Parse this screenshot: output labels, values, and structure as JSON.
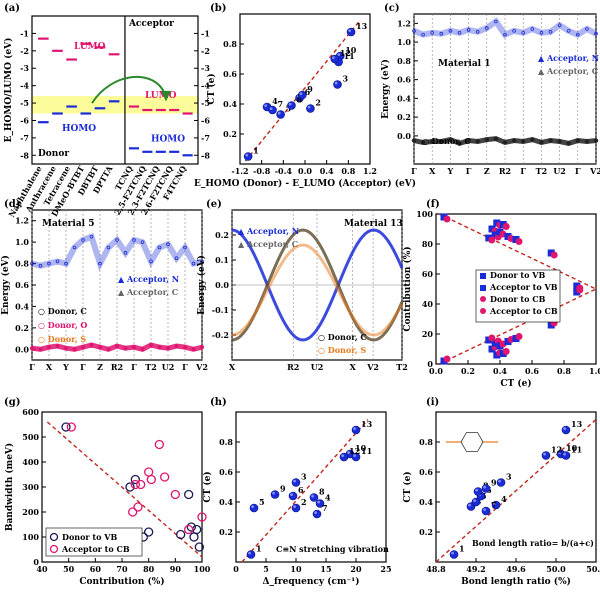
{
  "colors": {
    "blue": "#1a2bd8",
    "pink": "#e0156f",
    "orange": "#e8781a",
    "gray": "#8a8a8a",
    "red_dash": "#c0281e",
    "yellow": "#fdfc9b",
    "green": "#2a8a2a",
    "black": "#111111"
  },
  "chart_data": [
    {
      "panel": "(a)",
      "type": "scatter",
      "ylabel": "E_HOMO/LUMO (eV)",
      "ylim": [
        -8.5,
        0
      ],
      "annotations": [
        "LUMO",
        "HOMO",
        "Donor",
        "Acceptor",
        "LUMO",
        "HOMO"
      ],
      "donor_molecules": [
        "Naphthalene",
        "Anthracene",
        "Tetracene",
        "DMeO-BTBT",
        "DBTBT",
        "DPTTA"
      ],
      "acceptor_molecules": [
        "TCNQ",
        "2,5-F2TCNQ",
        "2,3-F2TCNQ",
        "2,6-F2TCNQ",
        "F4TCNQ"
      ],
      "donor_homo": [
        -6.1,
        -5.6,
        -5.2,
        -5.6,
        -5.3,
        -4.9
      ],
      "donor_lumo": [
        -1.3,
        -2.0,
        -2.5,
        -1.6,
        -1.8,
        -2.2
      ],
      "acceptor_lumo": [
        -5.2,
        -5.4,
        -5.4,
        -5.4,
        -5.6
      ],
      "acceptor_homo": [
        -7.6,
        -7.8,
        -7.8,
        -7.8,
        -8.0
      ],
      "yticks": [
        -8,
        -7,
        -6,
        -5,
        -4,
        -3,
        -2,
        -1
      ],
      "band": [
        -5.6,
        -4.6
      ]
    },
    {
      "panel": "(b)",
      "type": "scatter",
      "xlabel": "E_HOMO (Donor) - E_LUMO (Acceptor) (eV)",
      "ylabel": "CT (e)",
      "xlim": [
        -1.2,
        1.2
      ],
      "ylim": [
        0.0,
        1.0
      ],
      "xticks": [
        -1.2,
        -0.8,
        -0.4,
        0.0,
        0.4,
        0.8,
        1.2
      ],
      "yticks": [
        0.2,
        0.4,
        0.6,
        0.8
      ],
      "points": [
        {
          "label": "1",
          "x": -1.05,
          "y": 0.05
        },
        {
          "label": "2",
          "x": 0.1,
          "y": 0.37
        },
        {
          "label": "3",
          "x": 0.6,
          "y": 0.53
        },
        {
          "label": "4",
          "x": -0.7,
          "y": 0.38
        },
        {
          "label": "5",
          "x": -0.45,
          "y": 0.33
        },
        {
          "label": "6",
          "x": -0.1,
          "y": 0.44
        },
        {
          "label": "7",
          "x": -0.6,
          "y": 0.36
        },
        {
          "label": "8",
          "x": -0.25,
          "y": 0.39
        },
        {
          "label": "9",
          "x": -0.05,
          "y": 0.46
        },
        {
          "label": "10",
          "x": 0.65,
          "y": 0.72
        },
        {
          "label": "11",
          "x": 0.62,
          "y": 0.68
        },
        {
          "label": "12",
          "x": 0.55,
          "y": 0.7
        },
        {
          "label": "13",
          "x": 0.85,
          "y": 0.88
        }
      ],
      "fit": [
        [
          -1.1,
          0.02
        ],
        [
          1.0,
          0.95
        ]
      ]
    },
    {
      "panel": "(c)",
      "type": "line",
      "title": "Material 1",
      "ylabel": "Energy (eV)",
      "ylim": [
        -0.3,
        1.3
      ],
      "yticks": [
        0.0,
        0.2,
        0.4,
        0.6,
        0.8,
        1.0,
        1.2
      ],
      "kpoints": [
        "Γ",
        "X",
        "Y",
        "Γ",
        "Z",
        "R2",
        "Γ",
        "T2",
        "U2",
        "Γ",
        "V2"
      ],
      "legend": [
        "Acceptor, N",
        "Acceptor, C",
        "Donor, C"
      ],
      "acceptor_band": [
        1.12,
        1.08,
        1.1,
        1.09,
        1.12,
        1.1,
        1.13,
        1.11,
        1.15,
        1.22,
        1.08,
        1.12,
        1.1,
        1.14,
        1.1,
        1.11,
        1.18,
        1.12,
        1.08,
        1.14,
        1.09
      ],
      "donor_band": [
        -0.05,
        -0.07,
        -0.06,
        -0.06,
        -0.04,
        -0.08,
        -0.05,
        -0.06,
        -0.04,
        -0.03,
        -0.07,
        -0.05,
        -0.06,
        -0.04,
        -0.07,
        -0.05,
        -0.06,
        -0.08,
        -0.05,
        -0.06,
        -0.05
      ]
    },
    {
      "panel": "(d)",
      "type": "line",
      "title": "Material 5",
      "ylabel": "Energy (eV)",
      "ylim": [
        -0.1,
        1.3
      ],
      "yticks": [
        0.0,
        0.2,
        0.4,
        0.6,
        0.8,
        1.0,
        1.2
      ],
      "kpoints": [
        "Γ",
        "X",
        "Y",
        "Γ",
        "Z",
        "R2",
        "Γ",
        "T2",
        "U2",
        "Γ",
        "V2"
      ],
      "legend": [
        "Acceptor, N",
        "Acceptor, C",
        "Donor, C",
        "Donor, O",
        "Donor, S"
      ],
      "acceptor_band": [
        0.8,
        0.78,
        0.8,
        0.82,
        0.8,
        0.95,
        1.02,
        1.05,
        0.8,
        0.95,
        1.02,
        0.9,
        1.02,
        1.0,
        0.82,
        0.95,
        0.98,
        0.85,
        0.95,
        0.8,
        0.82
      ],
      "donor_band": [
        0.01,
        0.0,
        0.02,
        0.03,
        0.01,
        0.0,
        0.02,
        0.04,
        0.02,
        0.0,
        0.03,
        0.01,
        0.02,
        0.0,
        0.04,
        0.02,
        0.01,
        0.03,
        0.02,
        0.0,
        0.02
      ]
    },
    {
      "panel": "(e)",
      "type": "line",
      "title": "Material 13",
      "ylabel": "Energy (eV)",
      "ylim": [
        -0.3,
        0.3
      ],
      "yticks": [
        -0.2,
        -0.1,
        0.0,
        0.1,
        0.2
      ],
      "kpoints": [
        "X",
        "R2",
        "U2",
        "X",
        "V2",
        "T2"
      ],
      "legend": [
        "Acceptor, N",
        "Acceptor, C",
        "Donor, C",
        "Donor, S"
      ]
    },
    {
      "panel": "(f)",
      "type": "scatter",
      "xlabel": "CT (e)",
      "ylabel": "Contribution (%)",
      "xlim": [
        0.0,
        1.0
      ],
      "ylim": [
        0,
        100
      ],
      "xticks": [
        0.0,
        0.2,
        0.4,
        0.6,
        0.8,
        1.0
      ],
      "yticks": [
        0,
        20,
        40,
        60,
        80,
        100
      ],
      "legend": [
        "Donor to VB",
        "Acceptor to VB",
        "Donor to CB",
        "Acceptor to CB"
      ],
      "upper_points": [
        [
          0.05,
          98
        ],
        [
          0.35,
          90
        ],
        [
          0.38,
          94
        ],
        [
          0.42,
          93
        ],
        [
          0.37,
          86
        ],
        [
          0.33,
          84
        ],
        [
          0.4,
          88
        ],
        [
          0.45,
          85
        ],
        [
          0.5,
          83
        ],
        [
          0.72,
          74
        ],
        [
          0.88,
          52
        ]
      ],
      "lower_points": [
        [
          0.05,
          2
        ],
        [
          0.35,
          10
        ],
        [
          0.38,
          6
        ],
        [
          0.42,
          7
        ],
        [
          0.37,
          14
        ],
        [
          0.33,
          16
        ],
        [
          0.4,
          12
        ],
        [
          0.45,
          15
        ],
        [
          0.5,
          17
        ],
        [
          0.72,
          26
        ],
        [
          0.88,
          48
        ]
      ]
    },
    {
      "panel": "(g)",
      "type": "scatter",
      "xlabel": "Contribution (%)",
      "ylabel": "Bandwidth (meV)",
      "xlim": [
        40,
        100
      ],
      "ylim": [
        0,
        600
      ],
      "xticks": [
        40,
        50,
        60,
        70,
        80,
        90,
        100
      ],
      "yticks": [
        0,
        100,
        200,
        300,
        400,
        500,
        600
      ],
      "legend": [
        "Donor to VB",
        "Acceptor to CB"
      ],
      "donor_points": [
        [
          49,
          540
        ],
        [
          73,
          300
        ],
        [
          75,
          330
        ],
        [
          78,
          100
        ],
        [
          80,
          120
        ],
        [
          95,
          270
        ],
        [
          96,
          140
        ],
        [
          97,
          100
        ],
        [
          98,
          130
        ],
        [
          99,
          60
        ],
        [
          92,
          110
        ]
      ],
      "acceptor_points": [
        [
          51,
          540
        ],
        [
          74,
          200
        ],
        [
          75,
          310
        ],
        [
          76,
          220
        ],
        [
          77,
          310
        ],
        [
          80,
          360
        ],
        [
          81,
          330
        ],
        [
          84,
          470
        ],
        [
          86,
          340
        ],
        [
          90,
          270
        ],
        [
          95,
          130
        ],
        [
          100,
          180
        ]
      ]
    },
    {
      "panel": "(h)",
      "type": "scatter",
      "xlabel": "Δ_frequency (cm⁻¹)",
      "ylabel": "CT (e)",
      "xlim": [
        0,
        25
      ],
      "ylim": [
        0.0,
        1.0
      ],
      "xticks": [
        0,
        5,
        10,
        15,
        20,
        25
      ],
      "yticks": [
        0.2,
        0.4,
        0.6,
        0.8
      ],
      "annotation": "C≡N stretching vibration",
      "points": [
        {
          "label": "1",
          "x": 2.5,
          "y": 0.05
        },
        {
          "label": "2",
          "x": 10,
          "y": 0.36
        },
        {
          "label": "3",
          "x": 10,
          "y": 0.53
        },
        {
          "label": "4",
          "x": 14,
          "y": 0.39
        },
        {
          "label": "5",
          "x": 3,
          "y": 0.36
        },
        {
          "label": "6",
          "x": 9.5,
          "y": 0.44
        },
        {
          "label": "7",
          "x": 13.5,
          "y": 0.32
        },
        {
          "label": "8",
          "x": 13,
          "y": 0.43
        },
        {
          "label": "9",
          "x": 6.5,
          "y": 0.45
        },
        {
          "label": "10",
          "x": 19,
          "y": 0.72
        },
        {
          "label": "11",
          "x": 20,
          "y": 0.7
        },
        {
          "label": "12",
          "x": 18,
          "y": 0.7
        },
        {
          "label": "13",
          "x": 20,
          "y": 0.88
        }
      ],
      "fit": [
        [
          1,
          0.0
        ],
        [
          22,
          0.95
        ]
      ]
    },
    {
      "panel": "(i)",
      "type": "scatter",
      "xlabel": "Bond length ratio (%)",
      "ylabel": "CT (e)",
      "xlim": [
        48.8,
        50.4
      ],
      "ylim": [
        0.0,
        1.0
      ],
      "xticks": [
        48.8,
        49.2,
        49.6,
        50.0,
        50.4
      ],
      "yticks": [
        0.2,
        0.4,
        0.6,
        0.8
      ],
      "annotation": "Bond length ratio= b/(a+c)",
      "points": [
        {
          "label": "1",
          "x": 48.98,
          "y": 0.05
        },
        {
          "label": "2",
          "x": 49.15,
          "y": 0.37
        },
        {
          "label": "3",
          "x": 49.45,
          "y": 0.53
        },
        {
          "label": "4",
          "x": 49.4,
          "y": 0.38
        },
        {
          "label": "5",
          "x": 49.2,
          "y": 0.4
        },
        {
          "label": "6",
          "x": 49.25,
          "y": 0.44
        },
        {
          "label": "7",
          "x": 49.3,
          "y": 0.34
        },
        {
          "label": "8",
          "x": 49.22,
          "y": 0.47
        },
        {
          "label": "9",
          "x": 49.3,
          "y": 0.49
        },
        {
          "label": "10",
          "x": 50.05,
          "y": 0.72
        },
        {
          "label": "11",
          "x": 50.1,
          "y": 0.71
        },
        {
          "label": "12",
          "x": 49.9,
          "y": 0.71
        },
        {
          "label": "13",
          "x": 50.1,
          "y": 0.88
        }
      ],
      "fit": [
        [
          48.8,
          0.0
        ],
        [
          50.4,
          0.95
        ]
      ]
    }
  ]
}
